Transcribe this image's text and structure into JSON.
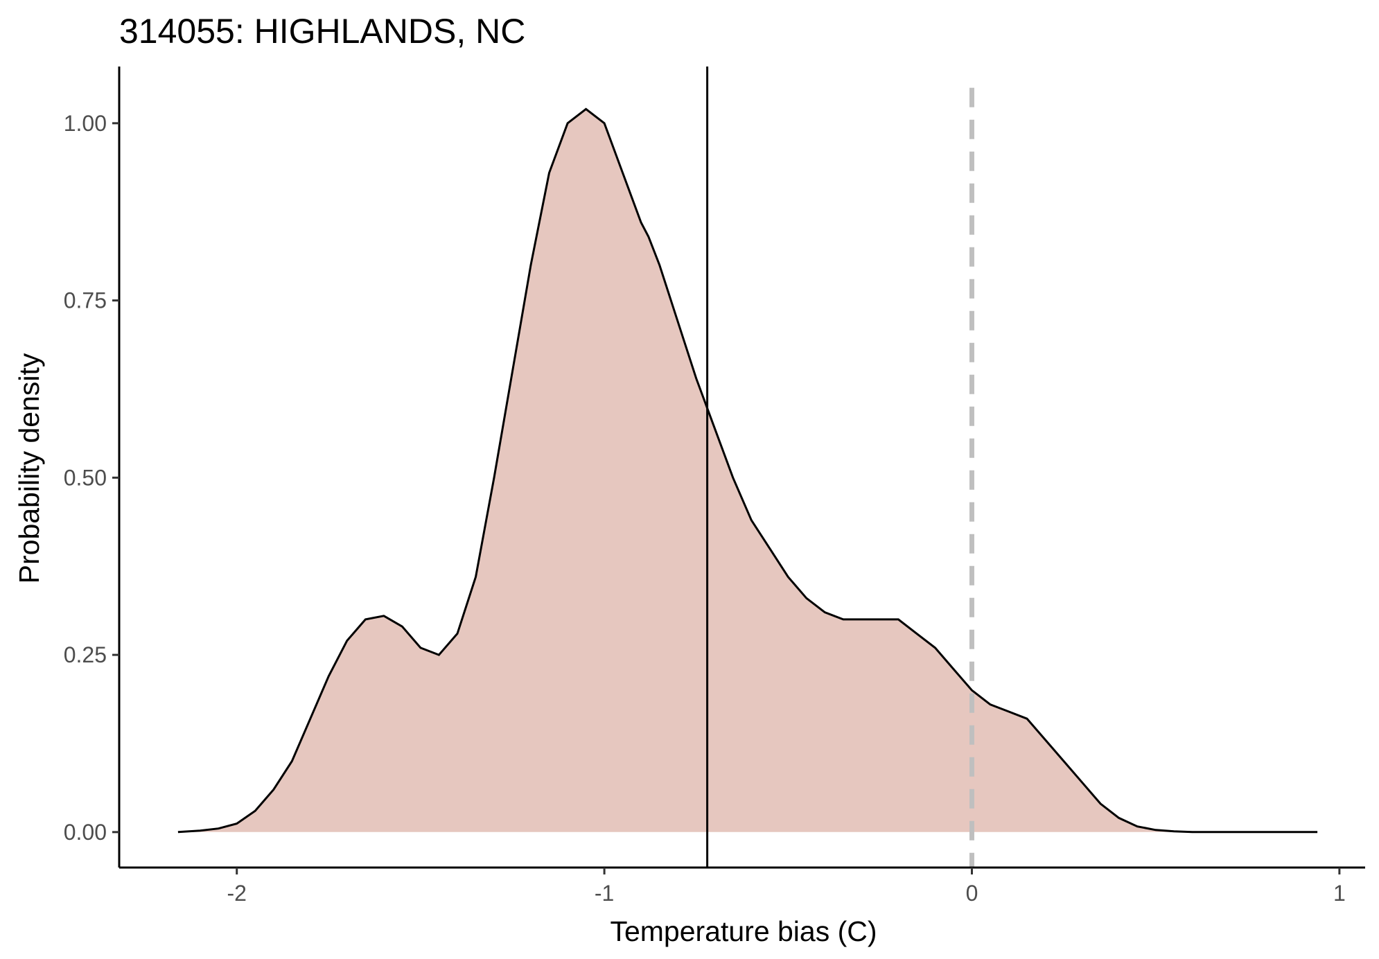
{
  "chart_data": {
    "type": "area",
    "title": "314055: HIGHLANDS, NC",
    "xlabel": "Temperature bias (C)",
    "ylabel": "Probability density",
    "xlim": [
      -2.32,
      1.07
    ],
    "ylim": [
      -0.05,
      1.08
    ],
    "x_ticks": [
      -2,
      -1,
      0,
      1
    ],
    "x_tick_labels": [
      "-2",
      "-1",
      "0",
      "1"
    ],
    "y_ticks": [
      0,
      0.25,
      0.5,
      0.75,
      1.0
    ],
    "y_tick_labels": [
      "0.00",
      "0.25",
      "0.50",
      "0.75",
      "1.00"
    ],
    "grid": false,
    "fill_color": "#e6c7bf",
    "line_color": "#000000",
    "series": [
      {
        "x": [
          -2.16,
          -2.1,
          -2.05,
          -2.0,
          -1.95,
          -1.9,
          -1.85,
          -1.8,
          -1.75,
          -1.7,
          -1.65,
          -1.6,
          -1.55,
          -1.5,
          -1.45,
          -1.4,
          -1.35,
          -1.3,
          -1.25,
          -1.2,
          -1.15,
          -1.1,
          -1.05,
          -1.0,
          -0.95,
          -0.9,
          -0.88,
          -0.85,
          -0.8,
          -0.75,
          -0.7,
          -0.65,
          -0.6,
          -0.55,
          -0.5,
          -0.45,
          -0.4,
          -0.35,
          -0.3,
          -0.25,
          -0.2,
          -0.15,
          -0.1,
          -0.05,
          0.0,
          0.05,
          0.1,
          0.15,
          0.2,
          0.25,
          0.3,
          0.35,
          0.4,
          0.45,
          0.5,
          0.55,
          0.6,
          0.65,
          0.7,
          0.75,
          0.8,
          0.85,
          0.9,
          0.94
        ],
        "values": [
          0.0,
          0.002,
          0.005,
          0.012,
          0.03,
          0.06,
          0.1,
          0.16,
          0.22,
          0.27,
          0.3,
          0.305,
          0.29,
          0.26,
          0.25,
          0.28,
          0.36,
          0.5,
          0.65,
          0.8,
          0.93,
          1.0,
          1.02,
          1.0,
          0.93,
          0.86,
          0.84,
          0.8,
          0.72,
          0.64,
          0.57,
          0.5,
          0.44,
          0.4,
          0.36,
          0.33,
          0.31,
          0.3,
          0.3,
          0.3,
          0.3,
          0.28,
          0.26,
          0.23,
          0.2,
          0.18,
          0.17,
          0.16,
          0.13,
          0.1,
          0.07,
          0.04,
          0.02,
          0.008,
          0.003,
          0.001,
          0.0,
          0.0,
          0.0,
          0.0,
          0.0,
          0.0,
          0.0,
          0.0
        ]
      }
    ],
    "vlines": [
      {
        "x": -0.72,
        "style": "solid",
        "color": "#000000"
      },
      {
        "x": 0.0,
        "style": "dashed",
        "color": "#bfbfbf"
      }
    ]
  }
}
